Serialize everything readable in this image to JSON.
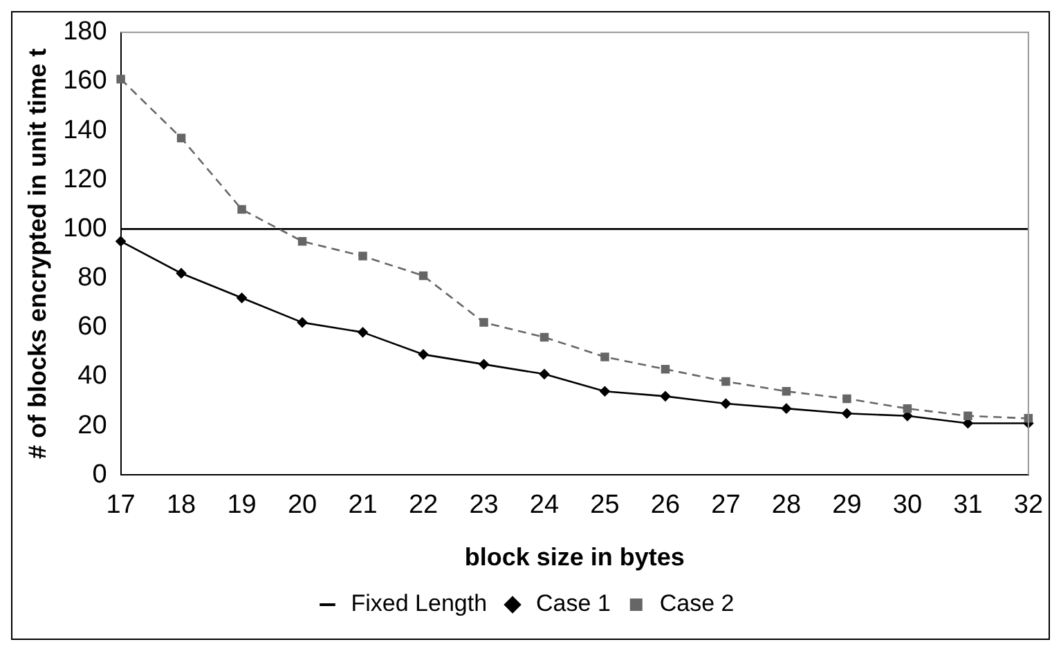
{
  "chart_data": {
    "type": "line",
    "xlabel": "block size in bytes",
    "ylabel": "# of blocks encrypted in unit time t",
    "categories": [
      "17",
      "18",
      "19",
      "20",
      "21",
      "22",
      "23",
      "24",
      "25",
      "26",
      "27",
      "28",
      "29",
      "30",
      "31",
      "32"
    ],
    "series": [
      {
        "name": "Fixed Length",
        "color": "#000000",
        "marker": "none",
        "line_style": "solid",
        "values": [
          100,
          100,
          100,
          100,
          100,
          100,
          100,
          100,
          100,
          100,
          100,
          100,
          100,
          100,
          100,
          100
        ]
      },
      {
        "name": "Case 1",
        "color": "#000000",
        "marker": "diamond",
        "line_style": "solid",
        "values": [
          95,
          82,
          72,
          62,
          58,
          49,
          45,
          41,
          34,
          32,
          29,
          27,
          25,
          24,
          21,
          21
        ]
      },
      {
        "name": "Case 2",
        "color": "#666666",
        "marker": "square",
        "line_style": "dashed",
        "values": [
          161,
          137,
          108,
          95,
          89,
          81,
          62,
          56,
          48,
          43,
          38,
          34,
          31,
          27,
          24,
          23
        ]
      }
    ],
    "ylim": [
      0,
      180
    ],
    "yticks": [
      0,
      20,
      40,
      60,
      80,
      100,
      120,
      140,
      160,
      180
    ],
    "grid": false,
    "legend": "bottom"
  }
}
